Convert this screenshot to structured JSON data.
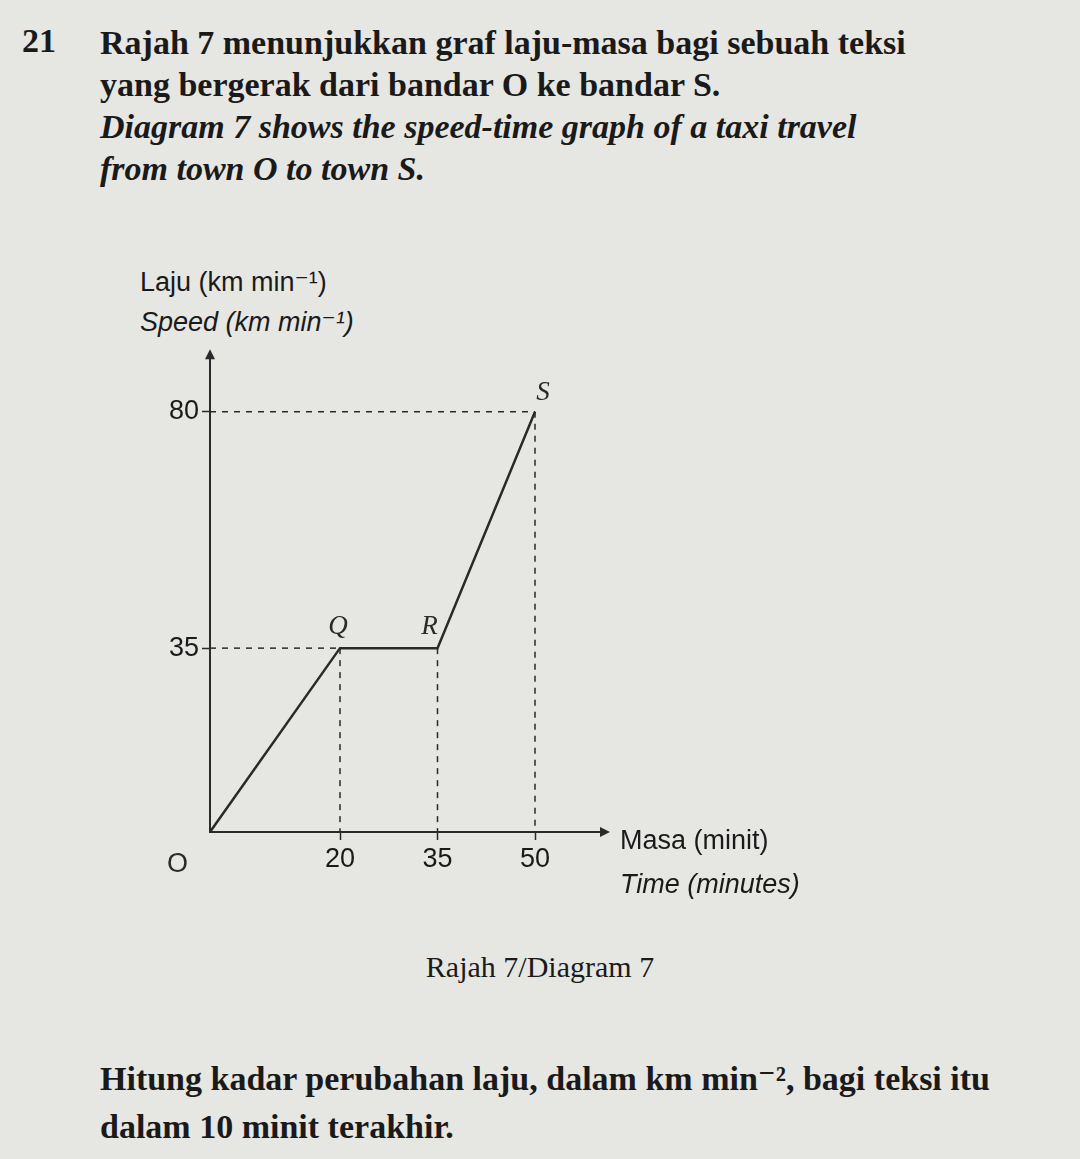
{
  "question": {
    "number": "21",
    "intro_ms": "Rajah 7 menunjukkan graf laju-masa bagi sebuah teksi yang bergerak dari bandar O ke bandar S.",
    "intro_en": "Diagram 7 shows the speed-time graph of a taxi travel from town O to town S.",
    "caption": "Rajah 7/Diagram 7",
    "task": "Hitung kadar perubahan laju, dalam km min⁻², bagi teksi itu dalam 10 minit terakhir."
  },
  "chart_data": {
    "type": "line",
    "xlabel": [
      "Masa (minit)",
      "Time (minutes)"
    ],
    "ylabel": [
      "Laju (km min⁻¹)",
      "Speed (km min⁻¹)"
    ],
    "x": [
      0,
      20,
      35,
      50
    ],
    "values": [
      0,
      35,
      35,
      80
    ],
    "point_labels": [
      "O",
      "Q",
      "R",
      "S"
    ],
    "color": "#2a2a2a",
    "marker": "none",
    "line_style": "solid",
    "xlim": [
      0,
      60
    ],
    "xticks": [
      20,
      35,
      50
    ],
    "ylim": [
      0,
      90
    ],
    "yticks": [
      35,
      80
    ],
    "grid": false,
    "legend": "none"
  }
}
